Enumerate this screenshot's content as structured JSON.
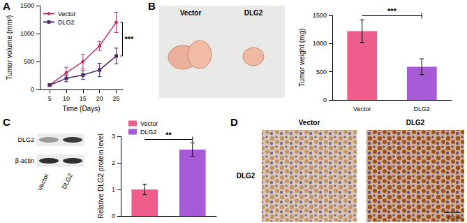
{
  "chart_data": [
    {
      "panel": "A",
      "type": "line",
      "x": [
        5,
        10,
        15,
        20,
        25
      ],
      "xlim": [
        2,
        27
      ],
      "xticks": [
        5,
        10,
        15,
        20,
        25
      ],
      "ylim": [
        0,
        1500
      ],
      "yticks": [
        0,
        500,
        1000,
        1500
      ],
      "xlabel": "Time (Days)",
      "ylabel": "Tumor volume (mm³)",
      "legend": "top-left",
      "grid": false,
      "series": [
        {
          "name": "Vector",
          "color": "#b5386e",
          "marker": "circle",
          "values": [
            80,
            300,
            500,
            780,
            1200
          ],
          "errors": [
            20,
            100,
            130,
            80,
            180
          ]
        },
        {
          "name": "DLG2",
          "color": "#4d2b6b",
          "marker": "square",
          "values": [
            80,
            200,
            260,
            350,
            600
          ],
          "errors": [
            20,
            60,
            80,
            120,
            140
          ]
        }
      ],
      "annotations": [
        {
          "text": "***"
        }
      ]
    },
    {
      "type": "bar",
      "categories": [
        "Vector",
        "DLG2"
      ],
      "values": [
        1220,
        590
      ],
      "errors": [
        200,
        140
      ],
      "colors": [
        "#ef5d8c",
        "#a75ad6"
      ],
      "ylim": [
        0,
        1500
      ],
      "yticks": [
        0,
        500,
        1000,
        1500
      ],
      "ylabel": "Tumor weight (mg)",
      "grid": false,
      "annotations": [
        {
          "text": "***"
        }
      ]
    },
    {
      "type": "bar",
      "categories": [
        null,
        null
      ],
      "stacked": true,
      "tick_labels": "y",
      "legend": "top-left",
      "ylim": [
        0,
        3
      ],
      "yticks": [
        0,
        1,
        2,
        3
      ],
      "ylabel": "Relative DLG2 protein level",
      "grid": false,
      "series": [
        {
          "name": "Vector",
          "color": "#ef5d8c",
          "values": [
            1.0,
            null
          ],
          "errors": [
            0.2,
            null
          ]
        },
        {
          "name": "DLG2",
          "color": "#a75ad6",
          "values": [
            null,
            2.5
          ],
          "errors": [
            null,
            0.25
          ]
        }
      ],
      "annotations": [
        {
          "text": "**"
        }
      ]
    }
  ],
  "images": [
    {
      "panel": "B",
      "type": "photo",
      "labels": [
        "Vector",
        "DLG2"
      ]
    },
    {
      "panel": "C",
      "type": "western_blot",
      "rows": [
        "DLG2",
        "β-actin"
      ],
      "lanes": [
        "Vector",
        "DLG2"
      ]
    },
    {
      "panel": "D",
      "type": "ihc",
      "columns": [
        "Vector",
        "DLG2"
      ],
      "row_label": "DLG2",
      "scale_bar": "100μm"
    }
  ]
}
